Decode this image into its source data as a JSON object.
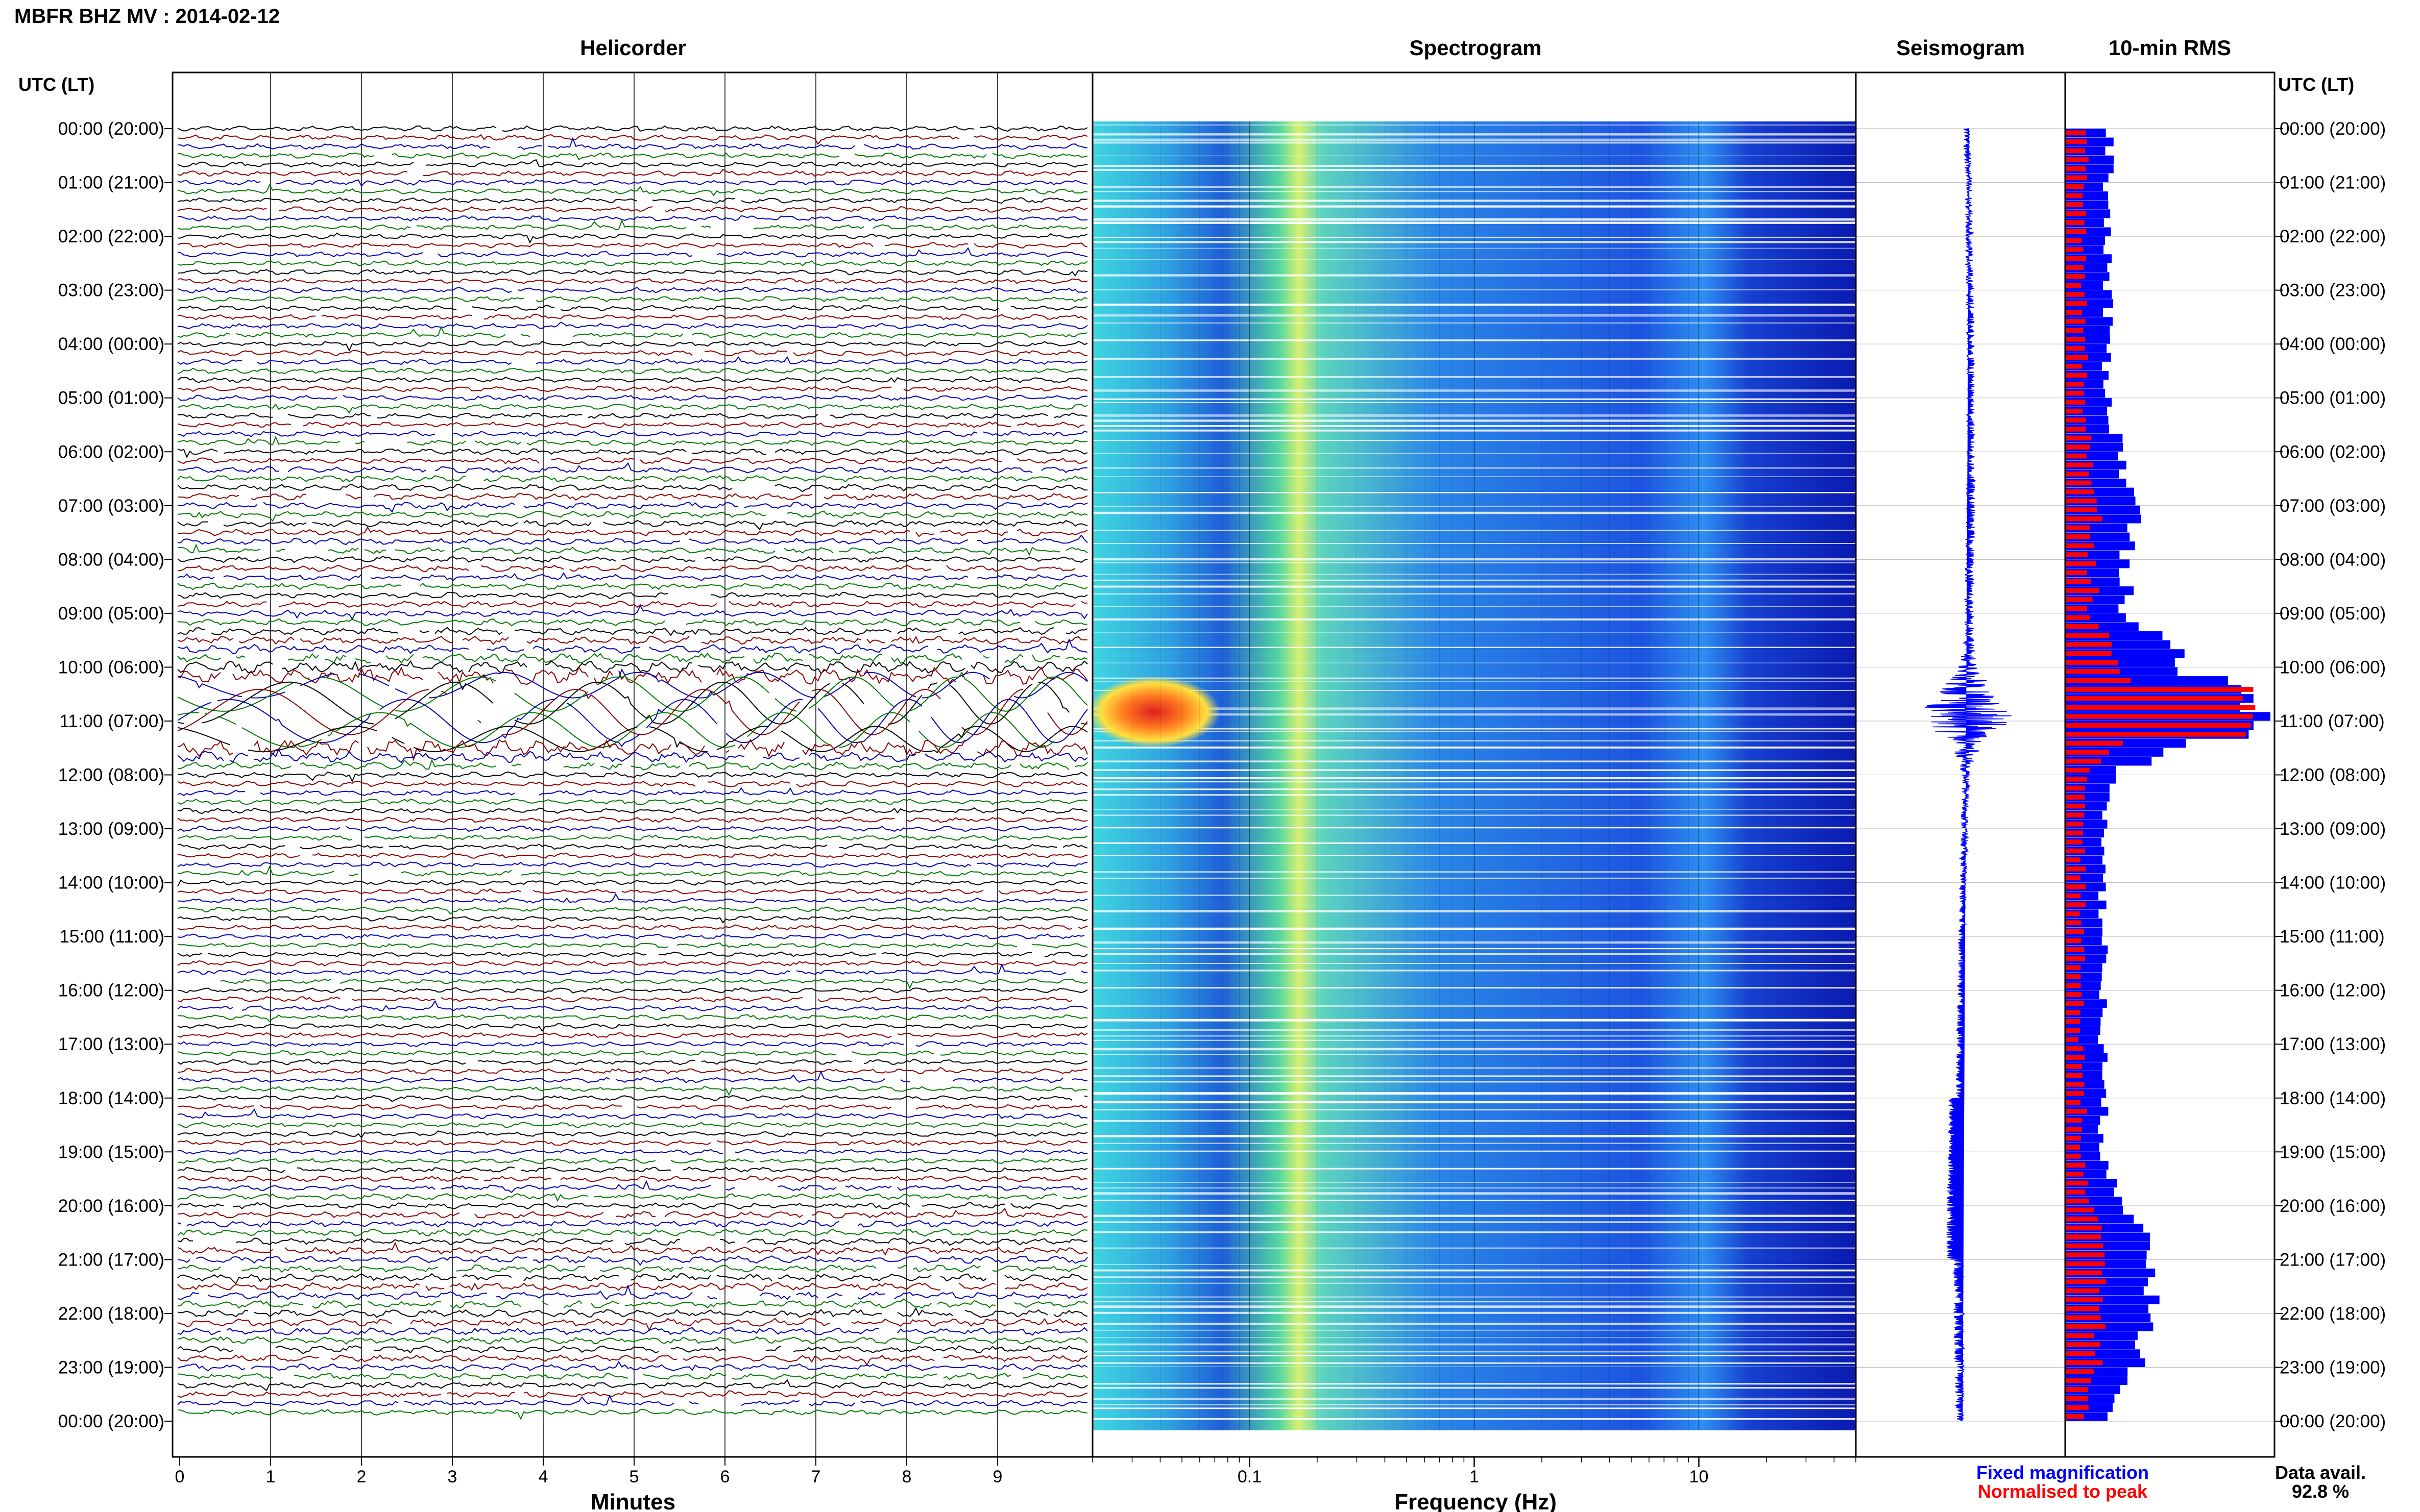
{
  "header": {
    "title": "MBFR BHZ MV : 2014-02-12"
  },
  "labels": {
    "utc_lt_left": "UTC (LT)",
    "utc_lt_right": "UTC (LT)",
    "fixed_magnification": "Fixed magnification",
    "normalised_to_peak": "Normalised to peak",
    "data_avail_label": "Data avail.",
    "data_avail_value": "92.8 %"
  },
  "colors": {
    "trace": [
      "#000000",
      "#8b0000",
      "#0000b0",
      "#007a00"
    ],
    "fixed": "#0000ff",
    "normalised": "#ff0000"
  },
  "chart_data": [
    {
      "type": "line",
      "panel": "Helicorder",
      "title": "Helicorder",
      "xlabel": "Minutes",
      "xlim": [
        0,
        10
      ],
      "x_ticks": [
        "0",
        "1",
        "2",
        "3",
        "4",
        "5",
        "6",
        "7",
        "8",
        "9"
      ],
      "y_ticks": [
        "00:00 (20:00)",
        "01:00 (21:00)",
        "02:00 (22:00)",
        "03:00 (23:00)",
        "04:00 (00:00)",
        "05:00 (01:00)",
        "06:00 (02:00)",
        "07:00 (03:00)",
        "08:00 (04:00)",
        "09:00 (05:00)",
        "10:00 (06:00)",
        "11:00 (07:00)",
        "12:00 (08:00)",
        "13:00 (09:00)",
        "14:00 (10:00)",
        "15:00 (11:00)",
        "16:00 (12:00)",
        "17:00 (13:00)",
        "18:00 (14:00)",
        "19:00 (15:00)",
        "20:00 (16:00)",
        "21:00 (17:00)",
        "22:00 (18:00)",
        "23:00 (19:00)",
        "00:00 (20:00)"
      ],
      "rows": 144
    },
    {
      "type": "heatmap",
      "panel": "Spectrogram",
      "title": "Spectrogram",
      "xlabel": "Frequency (Hz)",
      "x_scale": "log",
      "xlim": [
        0.02,
        50
      ],
      "x_ticks": [
        "0.1",
        "1",
        "10"
      ],
      "colormap": "jet",
      "peak": {
        "time_utc": "10:50",
        "freq_hz": [
          0.02,
          0.08
        ]
      }
    },
    {
      "type": "line",
      "panel": "Seismogram",
      "title": "Seismogram"
    },
    {
      "type": "bar",
      "panel": "10-min RMS",
      "title": "10-min RMS",
      "orientation": "horizontal",
      "series": [
        {
          "name": "Fixed magnification",
          "color": "#0000ff"
        },
        {
          "name": "Normalised to peak",
          "color": "#ff0000"
        }
      ],
      "peak_time_utc": "10:50",
      "fixed_level_by_hour": [
        0.22,
        0.21,
        0.2,
        0.2,
        0.2,
        0.21,
        0.26,
        0.34,
        0.3,
        0.3,
        0.6,
        1.0,
        0.22,
        0.2,
        0.18,
        0.18,
        0.18,
        0.18,
        0.18,
        0.18,
        0.3,
        0.4,
        0.45,
        0.34,
        0.22
      ]
    }
  ]
}
